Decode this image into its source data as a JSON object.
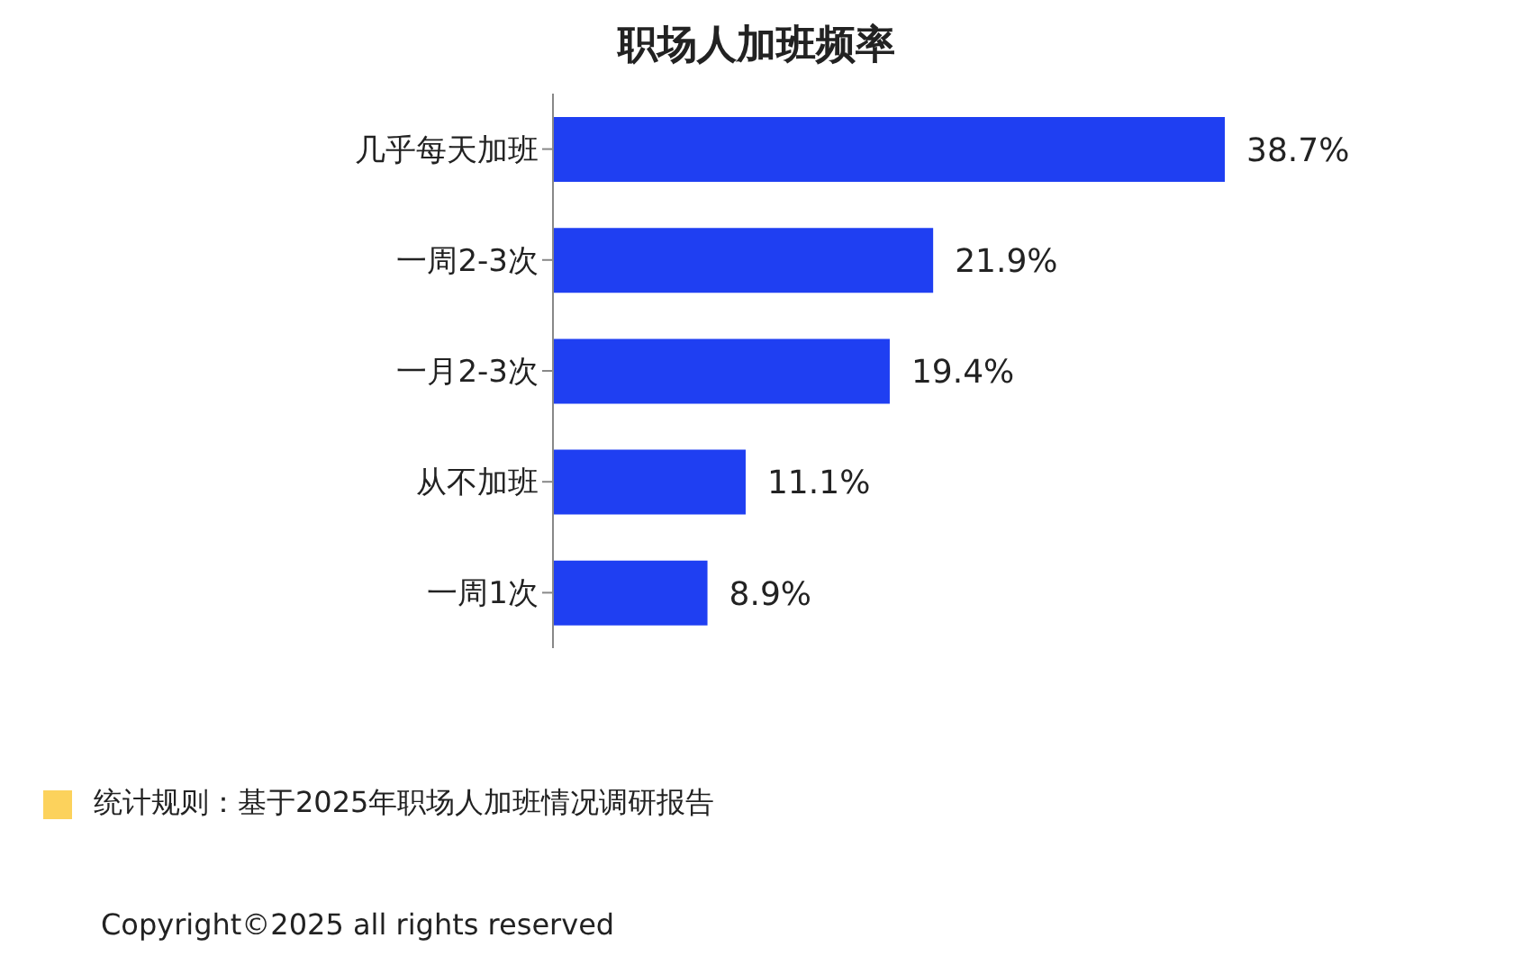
{
  "chart_data": {
    "type": "bar",
    "orientation": "horizontal",
    "title": "职场人加班频率",
    "categories": [
      "几乎每天加班",
      "一周2-3次",
      "一月2-3次",
      "从不加班",
      "一周1次"
    ],
    "values": [
      38.7,
      21.9,
      19.4,
      11.1,
      8.9
    ],
    "color": "#1f3ff2",
    "grid": false,
    "legend": false,
    "value_labels": [
      "38.7%",
      "21.9%",
      "19.4%",
      "11.1%",
      "8.9%"
    ],
    "annotations": [
      "统计规则：基于2025年职场人加班情况调研报告",
      "Copyright©2025 all rights reserved"
    ]
  }
}
